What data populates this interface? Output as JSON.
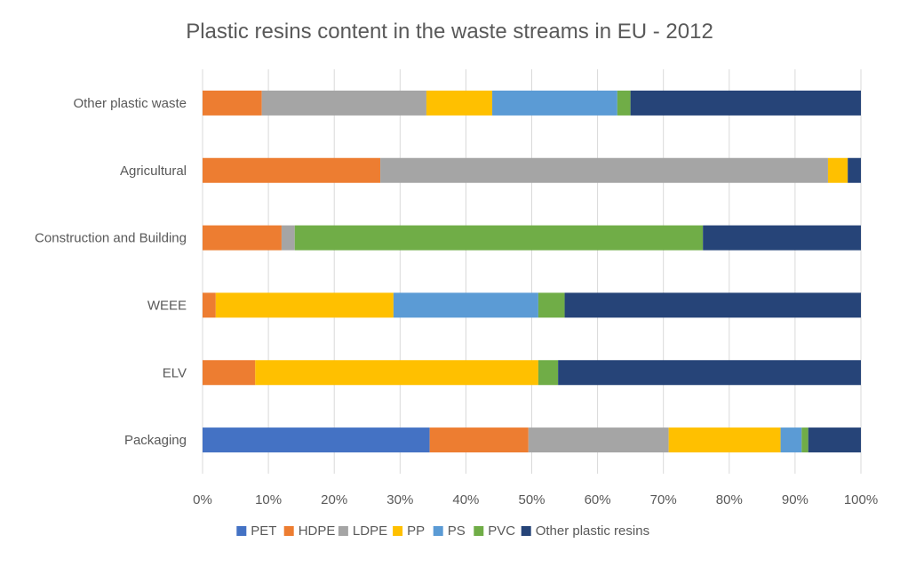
{
  "chart_data": {
    "type": "bar",
    "orientation": "horizontal",
    "stacked": "percent",
    "title": "Plastic resins content in the waste streams in EU - 2012",
    "xlabel": "",
    "ylabel": "",
    "categories": [
      "Packaging",
      "ELV",
      "WEEE",
      "Construction and Building",
      "Agricultural",
      "Other plastic waste"
    ],
    "xlim": [
      0,
      100
    ],
    "x_ticks": [
      "0%",
      "10%",
      "20%",
      "30%",
      "40%",
      "50%",
      "60%",
      "70%",
      "80%",
      "90%",
      "100%"
    ],
    "grid": true,
    "legend_position": "bottom",
    "series": [
      {
        "name": "PET",
        "color": "#4472C4",
        "values": [
          34.5,
          0,
          0,
          0,
          0,
          0
        ]
      },
      {
        "name": "HDPE",
        "color": "#ED7D31",
        "values": [
          15,
          8,
          2,
          12,
          27,
          9
        ]
      },
      {
        "name": "LDPE",
        "color": "#A5A5A5",
        "values": [
          21.3,
          0,
          0,
          2,
          68,
          25
        ]
      },
      {
        "name": "PP",
        "color": "#FFC000",
        "values": [
          17,
          43,
          27,
          0,
          3,
          10
        ]
      },
      {
        "name": "PS",
        "color": "#5B9BD5",
        "values": [
          3.2,
          0,
          22,
          0,
          0,
          19
        ]
      },
      {
        "name": "PVC",
        "color": "#70AD47",
        "values": [
          1,
          3,
          4,
          62,
          0,
          2
        ]
      },
      {
        "name": "Other plastic resins",
        "color": "#264478",
        "values": [
          8,
          46,
          45,
          24,
          2,
          35
        ]
      }
    ]
  }
}
